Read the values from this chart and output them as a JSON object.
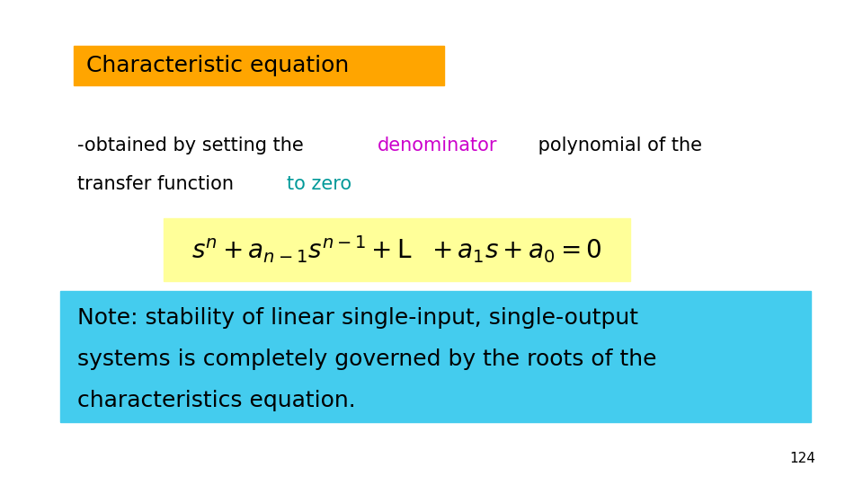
{
  "background_color": "#ffffff",
  "title_text": "Characteristic equation",
  "title_bg_color": "#FFA500",
  "title_fontsize": 18,
  "subtitle_line1_parts": [
    {
      "text": "-obtained by setting the ",
      "color": "#000000"
    },
    {
      "text": "denominator",
      "color": "#CC00CC"
    },
    {
      "text": " polynomial of the",
      "color": "#000000"
    }
  ],
  "subtitle_line2_parts": [
    {
      "text": "transfer function ",
      "color": "#000000"
    },
    {
      "text": "to zero",
      "color": "#009999"
    }
  ],
  "subtitle_fontsize": 15,
  "equation_bg_color": "#FFFF99",
  "equation_fontsize": 20,
  "note_bg_color": "#44CCEE",
  "note_line1": "Note: stability of linear single-input, single-output",
  "note_line2": "systems is completely governed by the roots of the",
  "note_line3": "characteristics equation.",
  "note_fontsize": 18,
  "page_number": "124",
  "page_fontsize": 11
}
